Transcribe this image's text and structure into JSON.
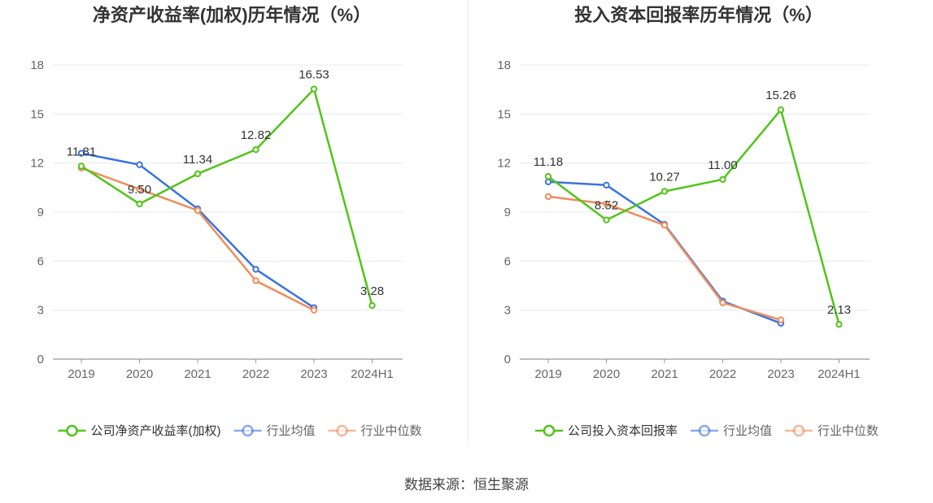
{
  "source": "数据来源：恒生聚源",
  "chart_data": [
    {
      "type": "line",
      "title": "净资产收益率(加权)历年情况（%）",
      "x": [
        "2019",
        "2020",
        "2021",
        "2022",
        "2023",
        "2024H1"
      ],
      "ylim": [
        0,
        18
      ],
      "yticks": [
        0,
        3,
        6,
        9,
        12,
        15,
        18
      ],
      "grid": true,
      "legend_position": "bottom",
      "series": [
        {
          "name": "公司净资产收益率(加权)",
          "color": "#52c41a",
          "values": [
            11.81,
            9.5,
            11.34,
            12.82,
            16.53,
            3.28
          ],
          "labels": [
            "11.81",
            "9.50",
            "11.34",
            "12.82",
            "16.53",
            "3.28"
          ]
        },
        {
          "name": "行业均值",
          "color": "#3b73e0",
          "values": [
            12.6,
            11.9,
            9.2,
            5.5,
            3.15,
            null
          ]
        },
        {
          "name": "行业中位数",
          "color": "#f08c5a",
          "values": [
            11.7,
            10.4,
            9.1,
            4.8,
            3.0,
            null
          ]
        }
      ]
    },
    {
      "type": "line",
      "title": "投入资本回报率历年情况（%）",
      "x": [
        "2019",
        "2020",
        "2021",
        "2022",
        "2023",
        "2024H1"
      ],
      "ylim": [
        0,
        18
      ],
      "yticks": [
        0,
        3,
        6,
        9,
        12,
        15,
        18
      ],
      "grid": true,
      "legend_position": "bottom",
      "series": [
        {
          "name": "公司投入资本回报率",
          "color": "#52c41a",
          "values": [
            11.18,
            8.52,
            10.27,
            11.0,
            15.26,
            2.13
          ],
          "labels": [
            "11.18",
            "8.52",
            "10.27",
            "11.00",
            "15.26",
            "2.13"
          ]
        },
        {
          "name": "行业均值",
          "color": "#3b73e0",
          "values": [
            10.85,
            10.65,
            8.25,
            3.55,
            2.2,
            null
          ]
        },
        {
          "name": "行业中位数",
          "color": "#f08c5a",
          "values": [
            9.95,
            9.5,
            8.2,
            3.45,
            2.4,
            null
          ]
        }
      ]
    }
  ]
}
